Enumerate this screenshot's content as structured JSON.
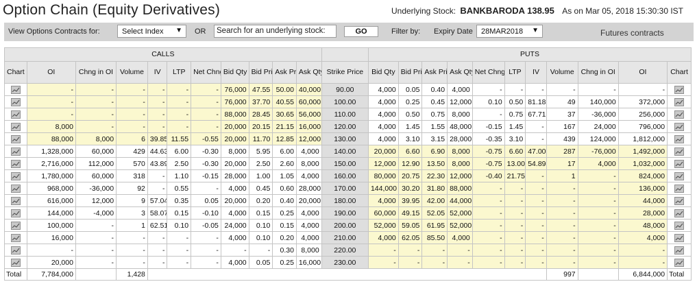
{
  "title": "Option Chain (Equity Derivatives)",
  "underlying": {
    "label": "Underlying Stock:",
    "stock": "BANKBARODA 138.95",
    "as_of": "As on Mar 05, 2018 15:30:30 IST",
    "refresh_icon": "refresh-icon"
  },
  "toolbar": {
    "view_label": "View Options Contracts for:",
    "index_select": "Select Index",
    "or_label": "OR",
    "search_value": "Search for an underlying stock:",
    "go_label": "GO",
    "filter_label": "Filter by:",
    "expiry_label": "Expiry Date",
    "expiry_value": "28MAR2018",
    "futures_link": "Futures contracts"
  },
  "table": {
    "calls_label": "CALLS",
    "puts_label": "PUTS",
    "headers": [
      "Chart",
      "OI",
      "Chng in OI",
      "Volume",
      "IV",
      "LTP",
      "Net Chng",
      "Bid Qty",
      "Bid Price",
      "Ask Price",
      "Ask Qty",
      "Strike Price",
      "Bid Qty",
      "Bid Price",
      "Ask Price",
      "Ask Qty",
      "Net Chng",
      "LTP",
      "IV",
      "Volume",
      "Chng in OI",
      "OI",
      "Chart"
    ],
    "rows": [
      {
        "calls": [
          "-",
          "-",
          "-",
          "-",
          "-",
          "-",
          "76,000",
          "47.55",
          "50.00",
          "40,000"
        ],
        "strike": "90.00",
        "puts": [
          "4,000",
          "0.05",
          "0.40",
          "4,000",
          "-",
          "-",
          "-",
          "-",
          "-",
          "-"
        ]
      },
      {
        "calls": [
          "-",
          "-",
          "-",
          "-",
          "-",
          "-",
          "76,000",
          "37.70",
          "40.55",
          "60,000"
        ],
        "strike": "100.00",
        "puts": [
          "4,000",
          "0.25",
          "0.45",
          "12,000",
          "0.10",
          "0.50",
          "81.18",
          "49",
          "140,000",
          "372,000"
        ]
      },
      {
        "calls": [
          "-",
          "-",
          "-",
          "-",
          "-",
          "-",
          "88,000",
          "28.45",
          "30.65",
          "56,000"
        ],
        "strike": "110.00",
        "puts": [
          "4,000",
          "0.50",
          "0.75",
          "8,000",
          "-",
          "0.75",
          "67.71",
          "37",
          "-36,000",
          "256,000"
        ]
      },
      {
        "calls": [
          "8,000",
          "-",
          "-",
          "-",
          "-",
          "-",
          "20,000",
          "20.15",
          "21.15",
          "16,000"
        ],
        "strike": "120.00",
        "puts": [
          "4,000",
          "1.45",
          "1.55",
          "48,000",
          "-0.15",
          "1.45",
          "-",
          "167",
          "24,000",
          "796,000"
        ]
      },
      {
        "calls": [
          "88,000",
          "8,000",
          "6",
          "39.85",
          "11.55",
          "-0.55",
          "20,000",
          "11.70",
          "12.85",
          "12,000"
        ],
        "strike": "130.00",
        "puts": [
          "4,000",
          "3.10",
          "3.15",
          "28,000",
          "-0.35",
          "3.10",
          "-",
          "439",
          "124,000",
          "1,812,000"
        ]
      },
      {
        "calls": [
          "1,328,000",
          "60,000",
          "429",
          "44.63",
          "6.00",
          "-0.30",
          "8,000",
          "5.95",
          "6.00",
          "4,000"
        ],
        "strike": "140.00",
        "puts": [
          "20,000",
          "6.60",
          "6.90",
          "8,000",
          "-0.75",
          "6.60",
          "47.00",
          "287",
          "-76,000",
          "1,492,000"
        ]
      },
      {
        "calls": [
          "2,716,000",
          "112,000",
          "570",
          "43.89",
          "2.50",
          "-0.30",
          "20,000",
          "2.50",
          "2.60",
          "8,000"
        ],
        "strike": "150.00",
        "puts": [
          "12,000",
          "12.90",
          "13.50",
          "8,000",
          "-0.75",
          "13.00",
          "54.89",
          "17",
          "4,000",
          "1,032,000"
        ]
      },
      {
        "calls": [
          "1,780,000",
          "60,000",
          "318",
          "-",
          "1.10",
          "-0.15",
          "28,000",
          "1.00",
          "1.05",
          "4,000"
        ],
        "strike": "160.00",
        "puts": [
          "80,000",
          "20.75",
          "22.30",
          "12,000",
          "-0.40",
          "21.75",
          "-",
          "1",
          "-",
          "824,000"
        ]
      },
      {
        "calls": [
          "968,000",
          "-36,000",
          "92",
          "-",
          "0.55",
          "-",
          "4,000",
          "0.45",
          "0.60",
          "28,000"
        ],
        "strike": "170.00",
        "puts": [
          "144,000",
          "30.20",
          "31.80",
          "88,000",
          "-",
          "-",
          "-",
          "-",
          "-",
          "136,000"
        ]
      },
      {
        "calls": [
          "616,000",
          "12,000",
          "9",
          "57.04",
          "0.35",
          "0.05",
          "20,000",
          "0.20",
          "0.40",
          "20,000"
        ],
        "strike": "180.00",
        "puts": [
          "4,000",
          "39.95",
          "42.00",
          "44,000",
          "-",
          "-",
          "-",
          "-",
          "-",
          "44,000"
        ]
      },
      {
        "calls": [
          "144,000",
          "-4,000",
          "3",
          "58.07",
          "0.15",
          "-0.10",
          "4,000",
          "0.15",
          "0.25",
          "4,000"
        ],
        "strike": "190.00",
        "puts": [
          "60,000",
          "49.15",
          "52.05",
          "52,000",
          "-",
          "-",
          "-",
          "-",
          "-",
          "28,000"
        ]
      },
      {
        "calls": [
          "100,000",
          "-",
          "1",
          "62.51",
          "0.10",
          "-0.05",
          "24,000",
          "0.10",
          "0.15",
          "4,000"
        ],
        "strike": "200.00",
        "puts": [
          "52,000",
          "59.05",
          "61.95",
          "52,000",
          "-",
          "-",
          "-",
          "-",
          "-",
          "48,000"
        ]
      },
      {
        "calls": [
          "16,000",
          "-",
          "-",
          "-",
          "-",
          "-",
          "4,000",
          "0.10",
          "0.20",
          "4,000"
        ],
        "strike": "210.00",
        "puts": [
          "4,000",
          "62.05",
          "85.50",
          "4,000",
          "-",
          "-",
          "-",
          "-",
          "-",
          "4,000"
        ]
      },
      {
        "calls": [
          "-",
          "-",
          "-",
          "-",
          "-",
          "-",
          "-",
          "-",
          "0.30",
          "8,000"
        ],
        "strike": "220.00",
        "puts": [
          "-",
          "-",
          "-",
          "-",
          "-",
          "-",
          "-",
          "-",
          "-",
          "-"
        ]
      },
      {
        "calls": [
          "20,000",
          "-",
          "-",
          "-",
          "-",
          "-",
          "4,000",
          "0.05",
          "0.25",
          "16,000"
        ],
        "strike": "230.00",
        "puts": [
          "-",
          "-",
          "-",
          "-",
          "-",
          "-",
          "-",
          "-",
          "-",
          "-"
        ]
      }
    ],
    "totals": {
      "left_label": "Total",
      "calls_oi": "7,784,000",
      "calls_volume": "1,428",
      "puts_volume": "997",
      "puts_oi": "6,844,000",
      "right_label": "Total"
    },
    "itm_rule": "calls ITM for strikes below 138.95, puts ITM for strikes above 138.95",
    "colors": {
      "itm": "#fbf8cf",
      "header": "#e6e6e6",
      "strike": "#dedede",
      "toolbar": "#d3d3d3"
    }
  }
}
